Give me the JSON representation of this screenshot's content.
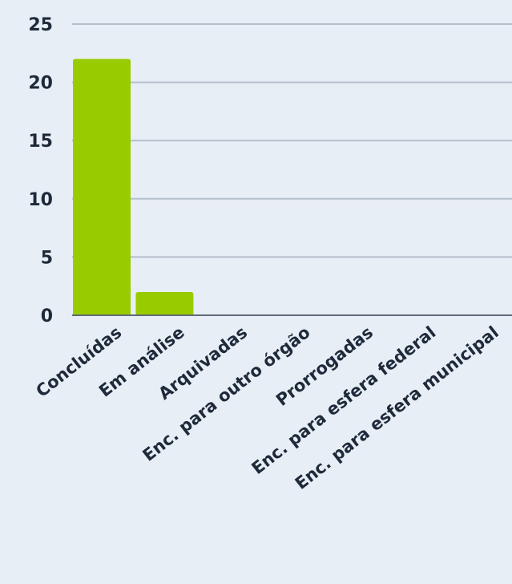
{
  "chart_data": {
    "type": "bar",
    "categories": [
      "Concluídas",
      "Em análise",
      "Arquivadas",
      "Enc. para outro órgão",
      "Prorrogadas",
      "Enc. para esfera federal",
      "Enc. para esfera municipal"
    ],
    "values": [
      22,
      2,
      0,
      0,
      0,
      0,
      0
    ],
    "ylim": [
      0,
      25
    ],
    "yticks": [
      0,
      5,
      10,
      15,
      20,
      25
    ],
    "grid": true,
    "colors": {
      "bar": "#99cc00",
      "grid": "#b4bfcc",
      "axis": "#5f6b78",
      "background": "#e8eef6",
      "text": "#1e2a3a"
    }
  }
}
